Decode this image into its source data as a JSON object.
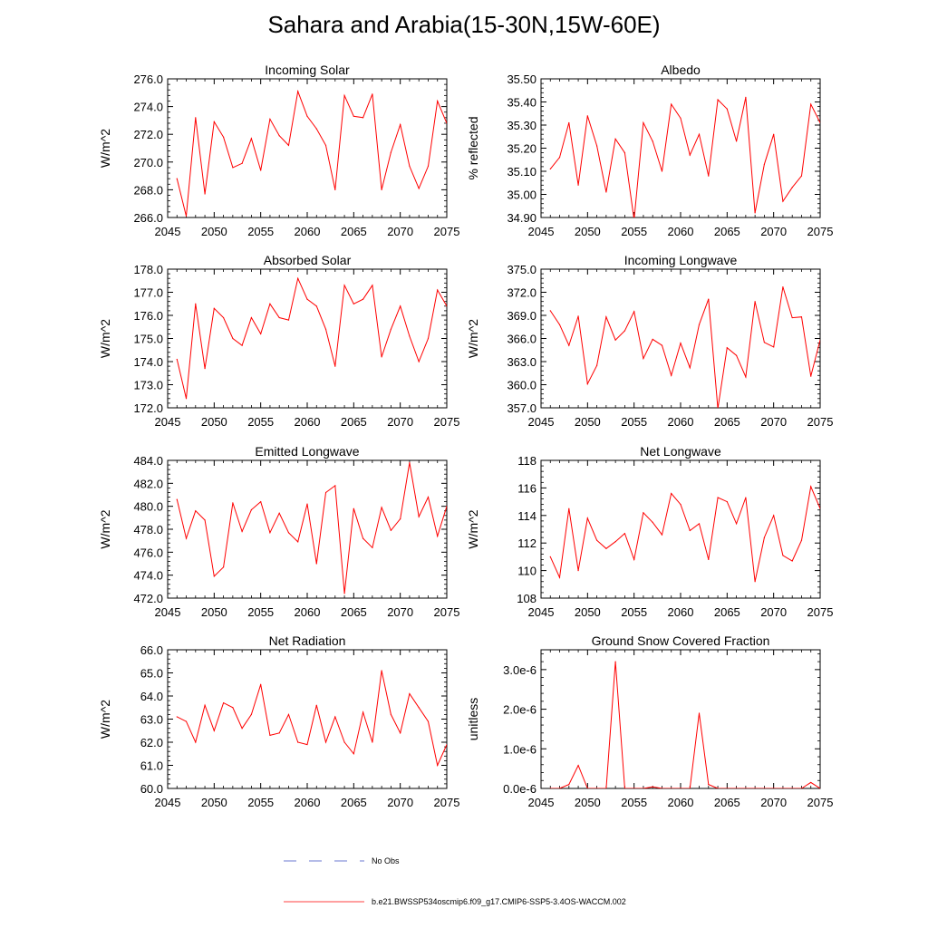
{
  "title": "Sahara and Arabia(15-30N,15W-60E)",
  "colors": {
    "model": "#ff0000",
    "obs": "#3b4fc4",
    "axis": "#000000"
  },
  "legend": {
    "obs_label": "No Obs",
    "model_label": "b.e21.BWSSP534oscmip6.f09_g17.CMIP6-SSP5-3.4OS-WACCM.002"
  },
  "chart_data": [
    {
      "type": "line",
      "title": "Incoming Solar",
      "ylabel": "W/m^2",
      "xlim": [
        2045,
        2075
      ],
      "ylim": [
        266.0,
        276.0
      ],
      "yticks": [
        "266.0",
        "268.0",
        "270.0",
        "272.0",
        "274.0",
        "276.0"
      ],
      "xticks": [
        "2045",
        "2050",
        "2055",
        "2060",
        "2065",
        "2070",
        "2075"
      ],
      "x": [
        2046,
        2047,
        2048,
        2049,
        2050,
        2051,
        2052,
        2053,
        2054,
        2055,
        2056,
        2057,
        2058,
        2059,
        2060,
        2061,
        2062,
        2063,
        2064,
        2065,
        2066,
        2067,
        2068,
        2069,
        2070,
        2071,
        2072,
        2073,
        2074,
        2075
      ],
      "values": [
        268.8,
        266.1,
        273.2,
        267.7,
        272.9,
        271.8,
        269.6,
        269.9,
        271.7,
        269.4,
        273.1,
        271.9,
        271.2,
        275.1,
        273.3,
        272.4,
        271.2,
        268.0,
        274.8,
        273.3,
        273.2,
        274.9,
        268.0,
        270.7,
        272.7,
        269.7,
        268.1,
        269.7,
        274.4,
        272.8
      ],
      "series_name": "b.e21.BWSSP534oscmip6.f09_g17.CMIP6-SSP5-3.4OS-WACCM.002"
    },
    {
      "type": "line",
      "title": "Albedo",
      "ylabel": "% reflected",
      "xlim": [
        2045,
        2075
      ],
      "ylim": [
        34.9,
        35.5
      ],
      "yticks": [
        "34.90",
        "35.00",
        "35.10",
        "35.20",
        "35.30",
        "35.40",
        "35.50"
      ],
      "xticks": [
        "2045",
        "2050",
        "2055",
        "2060",
        "2065",
        "2070",
        "2075"
      ],
      "x": [
        2046,
        2047,
        2048,
        2049,
        2050,
        2051,
        2052,
        2053,
        2054,
        2055,
        2056,
        2057,
        2058,
        2059,
        2060,
        2061,
        2062,
        2063,
        2064,
        2065,
        2066,
        2067,
        2068,
        2069,
        2070,
        2071,
        2072,
        2073,
        2074,
        2075
      ],
      "values": [
        35.11,
        35.16,
        35.31,
        35.04,
        35.34,
        35.21,
        35.01,
        35.24,
        35.18,
        34.89,
        35.31,
        35.23,
        35.1,
        35.39,
        35.33,
        35.17,
        35.26,
        35.08,
        35.41,
        35.37,
        35.23,
        35.42,
        34.92,
        35.13,
        35.26,
        34.97,
        35.03,
        35.08,
        35.39,
        35.31
      ],
      "series_name": "b.e21.BWSSP534oscmip6.f09_g17.CMIP6-SSP5-3.4OS-WACCM.002"
    },
    {
      "type": "line",
      "title": "Absorbed Solar",
      "ylabel": "W/m^2",
      "xlim": [
        2045,
        2075
      ],
      "ylim": [
        172.0,
        178.0
      ],
      "yticks": [
        "172.0",
        "173.0",
        "174.0",
        "175.0",
        "176.0",
        "177.0",
        "178.0"
      ],
      "xticks": [
        "2045",
        "2050",
        "2055",
        "2060",
        "2065",
        "2070",
        "2075"
      ],
      "x": [
        2046,
        2047,
        2048,
        2049,
        2050,
        2051,
        2052,
        2053,
        2054,
        2055,
        2056,
        2057,
        2058,
        2059,
        2060,
        2061,
        2062,
        2063,
        2064,
        2065,
        2066,
        2067,
        2068,
        2069,
        2070,
        2071,
        2072,
        2073,
        2074,
        2075
      ],
      "values": [
        174.1,
        172.4,
        176.5,
        173.7,
        176.3,
        175.9,
        175.0,
        174.7,
        175.9,
        175.2,
        176.5,
        175.9,
        175.8,
        177.6,
        176.7,
        176.4,
        175.4,
        173.8,
        177.3,
        176.5,
        176.7,
        177.3,
        174.2,
        175.4,
        176.4,
        175.1,
        174.0,
        175.0,
        177.1,
        176.4
      ],
      "series_name": "b.e21.BWSSP534oscmip6.f09_g17.CMIP6-SSP5-3.4OS-WACCM.002"
    },
    {
      "type": "line",
      "title": "Incoming Longwave",
      "ylabel": "W/m^2",
      "xlim": [
        2045,
        2075
      ],
      "ylim": [
        357.0,
        375.0
      ],
      "yticks": [
        "357.0",
        "360.0",
        "363.0",
        "366.0",
        "369.0",
        "372.0",
        "375.0"
      ],
      "xticks": [
        "2045",
        "2050",
        "2055",
        "2060",
        "2065",
        "2070",
        "2075"
      ],
      "x": [
        2046,
        2047,
        2048,
        2049,
        2050,
        2051,
        2052,
        2053,
        2054,
        2055,
        2056,
        2057,
        2058,
        2059,
        2060,
        2061,
        2062,
        2063,
        2064,
        2065,
        2066,
        2067,
        2068,
        2069,
        2070,
        2071,
        2072,
        2073,
        2074,
        2075
      ],
      "values": [
        369.6,
        367.8,
        365.1,
        368.9,
        360.1,
        362.5,
        368.8,
        365.8,
        367.0,
        369.5,
        363.4,
        365.9,
        365.1,
        361.2,
        365.4,
        362.2,
        367.8,
        371.1,
        356.9,
        364.8,
        363.8,
        361.0,
        370.8,
        365.5,
        364.9,
        372.7,
        368.7,
        368.8,
        361.1,
        365.8
      ],
      "series_name": "b.e21.BWSSP534oscmip6.f09_g17.CMIP6-SSP5-3.4OS-WACCM.002"
    },
    {
      "type": "line",
      "title": "Emitted Longwave",
      "ylabel": "W/m^2",
      "xlim": [
        2045,
        2075
      ],
      "ylim": [
        472.0,
        484.0
      ],
      "yticks": [
        "472.0",
        "474.0",
        "476.0",
        "478.0",
        "480.0",
        "482.0",
        "484.0"
      ],
      "xticks": [
        "2045",
        "2050",
        "2055",
        "2060",
        "2065",
        "2070",
        "2075"
      ],
      "x": [
        2046,
        2047,
        2048,
        2049,
        2050,
        2051,
        2052,
        2053,
        2054,
        2055,
        2056,
        2057,
        2058,
        2059,
        2060,
        2061,
        2062,
        2063,
        2064,
        2065,
        2066,
        2067,
        2068,
        2069,
        2070,
        2071,
        2072,
        2073,
        2074,
        2075
      ],
      "values": [
        480.6,
        477.2,
        479.6,
        478.8,
        473.9,
        474.7,
        480.3,
        477.8,
        479.7,
        480.4,
        477.7,
        479.4,
        477.7,
        476.9,
        480.2,
        475.0,
        481.2,
        481.8,
        472.4,
        479.8,
        477.2,
        476.4,
        479.9,
        477.9,
        478.9,
        483.8,
        479.1,
        480.8,
        477.4,
        480.0
      ],
      "series_name": "b.e21.BWSSP534oscmip6.f09_g17.CMIP6-SSP5-3.4OS-WACCM.002"
    },
    {
      "type": "line",
      "title": "Net Longwave",
      "ylabel": "W/m^2",
      "xlim": [
        2045,
        2075
      ],
      "ylim": [
        108,
        118
      ],
      "yticks": [
        "108",
        "110",
        "112",
        "114",
        "116",
        "118"
      ],
      "xticks": [
        "2045",
        "2050",
        "2055",
        "2060",
        "2065",
        "2070",
        "2075"
      ],
      "x": [
        2046,
        2047,
        2048,
        2049,
        2050,
        2051,
        2052,
        2053,
        2054,
        2055,
        2056,
        2057,
        2058,
        2059,
        2060,
        2061,
        2062,
        2063,
        2064,
        2065,
        2066,
        2067,
        2068,
        2069,
        2070,
        2071,
        2072,
        2073,
        2074,
        2075
      ],
      "values": [
        111.0,
        109.5,
        114.5,
        110.0,
        113.8,
        112.2,
        111.6,
        112.1,
        112.7,
        110.8,
        114.2,
        113.5,
        112.6,
        115.6,
        114.8,
        112.9,
        113.4,
        110.8,
        115.3,
        115.0,
        113.4,
        115.3,
        109.2,
        112.4,
        114.0,
        111.1,
        110.7,
        112.2,
        116.1,
        114.5
      ],
      "series_name": "b.e21.BWSSP534oscmip6.f09_g17.CMIP6-SSP5-3.4OS-WACCM.002"
    },
    {
      "type": "line",
      "title": "Net Radiation",
      "ylabel": "W/m^2",
      "xlim": [
        2045,
        2075
      ],
      "ylim": [
        60.0,
        66.0
      ],
      "yticks": [
        "60.0",
        "61.0",
        "62.0",
        "63.0",
        "64.0",
        "65.0",
        "66.0"
      ],
      "xticks": [
        "2045",
        "2050",
        "2055",
        "2060",
        "2065",
        "2070",
        "2075"
      ],
      "x": [
        2046,
        2047,
        2048,
        2049,
        2050,
        2051,
        2052,
        2053,
        2054,
        2055,
        2056,
        2057,
        2058,
        2059,
        2060,
        2061,
        2062,
        2063,
        2064,
        2065,
        2066,
        2067,
        2068,
        2069,
        2070,
        2071,
        2072,
        2073,
        2074,
        2075
      ],
      "values": [
        63.1,
        62.9,
        62.0,
        63.6,
        62.5,
        63.7,
        63.5,
        62.6,
        63.2,
        64.5,
        62.3,
        62.4,
        63.2,
        62.0,
        61.9,
        63.6,
        62.0,
        63.1,
        62.0,
        61.5,
        63.3,
        62.0,
        65.1,
        63.2,
        62.4,
        64.1,
        63.5,
        62.9,
        61.0,
        61.9
      ],
      "series_name": "b.e21.BWSSP534oscmip6.f09_g17.CMIP6-SSP5-3.4OS-WACCM.002"
    },
    {
      "type": "line",
      "title": "Ground Snow Covered Fraction",
      "ylabel": "unitless",
      "xlim": [
        2045,
        2075
      ],
      "ylim": [
        0.0,
        3.5e-06
      ],
      "ytick_values": [
        0.0,
        1e-06,
        2e-06,
        3e-06
      ],
      "yticks": [
        "0.0e-6",
        "1.0e-6",
        "2.0e-6",
        "3.0e-6"
      ],
      "xticks": [
        "2045",
        "2050",
        "2055",
        "2060",
        "2065",
        "2070",
        "2075"
      ],
      "x": [
        2046,
        2047,
        2048,
        2049,
        2050,
        2051,
        2052,
        2053,
        2054,
        2055,
        2056,
        2057,
        2058,
        2059,
        2060,
        2061,
        2062,
        2063,
        2064,
        2065,
        2066,
        2067,
        2068,
        2069,
        2070,
        2071,
        2072,
        2073,
        2074,
        2075
      ],
      "values": [
        0.0,
        0.0,
        1e-07,
        5.8e-07,
        0.0,
        0.0,
        0.0,
        3.2e-06,
        0.0,
        0.0,
        0.0,
        4e-08,
        0.0,
        0.0,
        0.0,
        0.0,
        1.9e-06,
        1e-07,
        0.0,
        0.0,
        0.0,
        0.0,
        0.0,
        0.0,
        0.0,
        0.0,
        0.0,
        0.0,
        1.5e-07,
        0.0
      ],
      "series_name": "b.e21.BWSSP534oscmip6.f09_g17.CMIP6-SSP5-3.4OS-WACCM.002"
    }
  ]
}
